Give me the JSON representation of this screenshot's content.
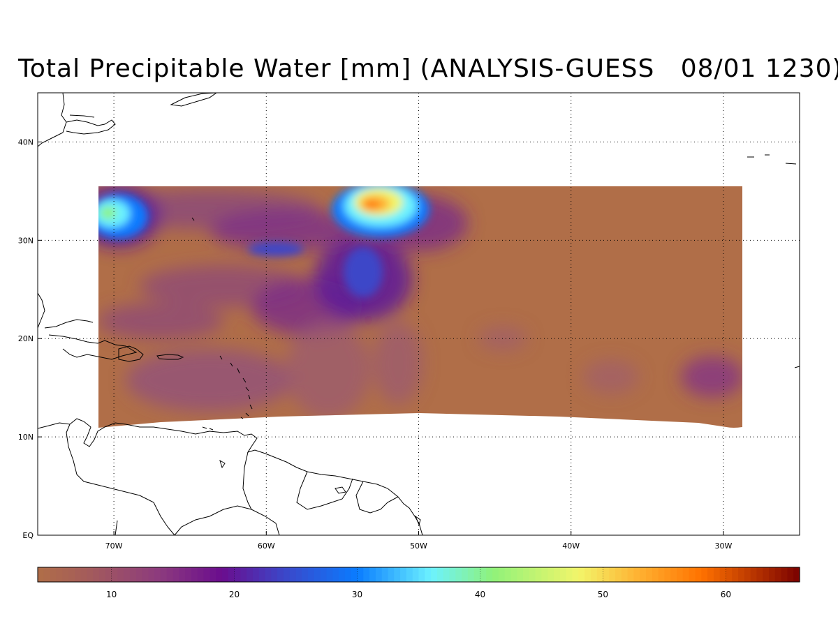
{
  "title": "Total Precipitable Water [mm] (ANALYSIS-GUESS   08/01 1230)",
  "map": {
    "lon_range": [
      -75,
      -25
    ],
    "lat_range": [
      0,
      45
    ],
    "lon_ticks": [
      {
        "value": -70,
        "label": "70W"
      },
      {
        "value": -60,
        "label": "60W"
      },
      {
        "value": -50,
        "label": "50W"
      },
      {
        "value": -40,
        "label": "40W"
      },
      {
        "value": -30,
        "label": "30W"
      }
    ],
    "lat_ticks": [
      {
        "value": 0,
        "label": "EQ"
      },
      {
        "value": 10,
        "label": "10N"
      },
      {
        "value": 20,
        "label": "20N"
      },
      {
        "value": 30,
        "label": "30N"
      },
      {
        "value": 40,
        "label": "40N"
      }
    ],
    "gridlines": true,
    "field_background_color": "#b06e48"
  },
  "colorbar": {
    "range": [
      4,
      66
    ],
    "ticks": [
      {
        "value": 10,
        "label": "10"
      },
      {
        "value": 20,
        "label": "20"
      },
      {
        "value": 30,
        "label": "30"
      },
      {
        "value": 40,
        "label": "40"
      },
      {
        "value": 50,
        "label": "50"
      },
      {
        "value": 60,
        "label": "60"
      }
    ],
    "stops": [
      {
        "value": 4,
        "color": "#b06e48"
      },
      {
        "value": 8,
        "color": "#a45c5a"
      },
      {
        "value": 14,
        "color": "#8c3a7e"
      },
      {
        "value": 19,
        "color": "#6a0d8e"
      },
      {
        "value": 24,
        "color": "#3c46c8"
      },
      {
        "value": 30,
        "color": "#0a7cff"
      },
      {
        "value": 36,
        "color": "#6cf2ff"
      },
      {
        "value": 41,
        "color": "#8ff27a"
      },
      {
        "value": 48,
        "color": "#f2f56a"
      },
      {
        "value": 53,
        "color": "#ffb030"
      },
      {
        "value": 58,
        "color": "#ff7200"
      },
      {
        "value": 66,
        "color": "#7a0000"
      }
    ]
  }
}
